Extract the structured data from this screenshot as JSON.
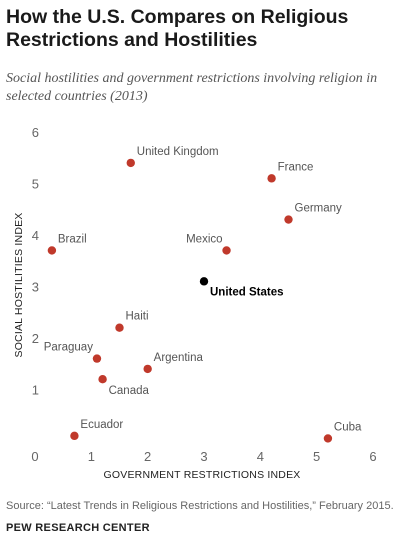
{
  "title": "How the U.S. Compares on Religious Restrictions and Hostilities",
  "subtitle": "Social hostilities and government restrictions involving religion in selected countries (2013)",
  "source": "Source: “Latest Trends in Religious Restrictions and Hostilities,” February 2015.",
  "brand": "PEW RESEARCH CENTER",
  "colors": {
    "point": "#c0392b",
    "highlight": "#000000"
  },
  "chart_data": {
    "type": "scatter",
    "xlabel": "GOVERNMENT RESTRICTIONS INDEX",
    "ylabel": "SOCIAL  HOSTILITIES INDEX",
    "xlim": [
      0,
      6
    ],
    "ylim": [
      0,
      6
    ],
    "xticks": [
      "0",
      "1",
      "2",
      "3",
      "4",
      "5",
      "6"
    ],
    "yticks": [
      "1",
      "2",
      "3",
      "4",
      "5",
      "6"
    ],
    "grid": false,
    "points": [
      {
        "label": "United Kingdom",
        "x": 1.7,
        "y": 5.4,
        "labelPos": "above-right"
      },
      {
        "label": "France",
        "x": 4.2,
        "y": 5.1,
        "labelPos": "above-right"
      },
      {
        "label": "Germany",
        "x": 4.5,
        "y": 4.3,
        "labelPos": "above-right"
      },
      {
        "label": "Brazil",
        "x": 0.3,
        "y": 3.7,
        "labelPos": "above-right"
      },
      {
        "label": "Mexico",
        "x": 3.4,
        "y": 3.7,
        "labelPos": "above-left"
      },
      {
        "label": "United States",
        "x": 3.0,
        "y": 3.1,
        "labelPos": "below-right",
        "highlight": true
      },
      {
        "label": "Haiti",
        "x": 1.5,
        "y": 2.2,
        "labelPos": "above-right"
      },
      {
        "label": "Paraguay",
        "x": 1.1,
        "y": 1.6,
        "labelPos": "above-left"
      },
      {
        "label": "Argentina",
        "x": 2.0,
        "y": 1.4,
        "labelPos": "above-right"
      },
      {
        "label": "Canada",
        "x": 1.2,
        "y": 1.2,
        "labelPos": "below-right"
      },
      {
        "label": "Ecuador",
        "x": 0.7,
        "y": 0.1,
        "labelPos": "above-right"
      },
      {
        "label": "Cuba",
        "x": 5.2,
        "y": 0.05,
        "labelPos": "above-right"
      }
    ]
  }
}
